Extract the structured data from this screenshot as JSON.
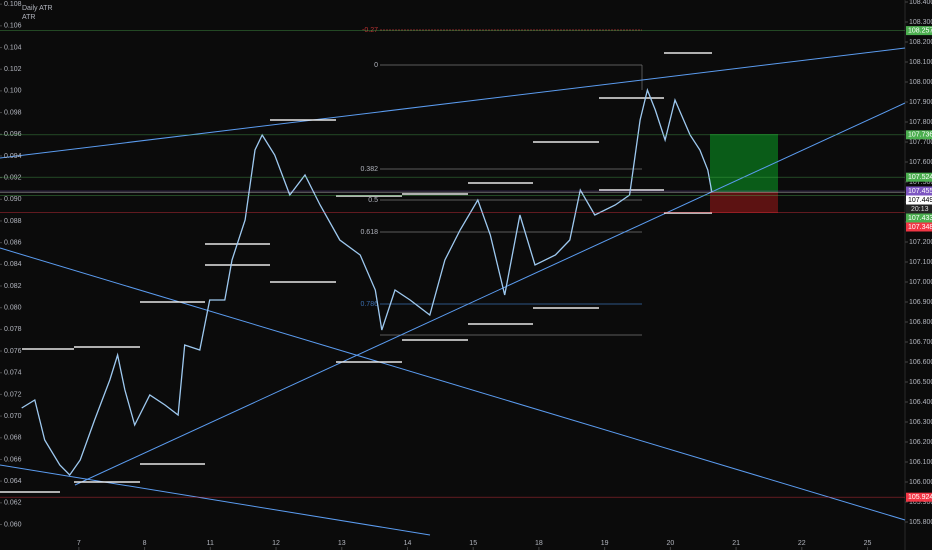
{
  "header": {
    "title": "Daily ATR",
    "indicator": "ATR"
  },
  "chart_data": {
    "type": "line",
    "color": "#9ec9f0",
    "axis": "y2",
    "x": [
      -0.87,
      -0.67,
      -0.52,
      -0.29,
      -0.14,
      0.02,
      0.24,
      0.47,
      0.59,
      0.7,
      0.85,
      1.08,
      1.31,
      1.51,
      1.61,
      1.84,
      1.99,
      2.22,
      2.33,
      2.53,
      2.68,
      2.79,
      2.98,
      3.21,
      3.44,
      3.67,
      3.97,
      4.28,
      4.51,
      4.61,
      4.81,
      5.04,
      5.34,
      5.57,
      5.8,
      6.07,
      6.26,
      6.48,
      6.71,
      6.94,
      7.25,
      7.47,
      7.63,
      7.85,
      8.16,
      8.38,
      8.54,
      8.65,
      8.77,
      8.92,
      9.07,
      9.3,
      9.45,
      9.57,
      9.63
    ],
    "values": [
      106.37,
      106.41,
      106.21,
      106.085,
      106.035,
      106.11,
      106.31,
      106.51,
      106.635,
      106.46,
      106.285,
      106.435,
      106.385,
      106.335,
      106.685,
      106.66,
      106.91,
      106.91,
      107.11,
      107.31,
      107.66,
      107.735,
      107.635,
      107.435,
      107.535,
      107.385,
      107.21,
      107.135,
      106.96,
      106.76,
      106.96,
      106.91,
      106.835,
      107.11,
      107.26,
      107.41,
      107.235,
      106.935,
      107.335,
      107.085,
      107.135,
      107.21,
      107.46,
      107.335,
      107.385,
      107.435,
      107.81,
      107.96,
      107.86,
      107.71,
      107.91,
      107.735,
      107.66,
      107.56,
      107.45
    ],
    "xlim": [
      -1.2,
      12.57
    ],
    "xticks": [
      {
        "value": 0,
        "label": "7"
      },
      {
        "value": 1,
        "label": "8"
      },
      {
        "value": 2,
        "label": "11"
      },
      {
        "value": 3,
        "label": "12"
      },
      {
        "value": 4,
        "label": "13"
      },
      {
        "value": 5,
        "label": "14"
      },
      {
        "value": 6,
        "label": "15"
      },
      {
        "value": 7,
        "label": "18"
      },
      {
        "value": 8,
        "label": "19"
      },
      {
        "value": 9,
        "label": "20"
      },
      {
        "value": 10,
        "label": "21"
      },
      {
        "value": 11,
        "label": "22"
      },
      {
        "value": 12,
        "label": "25"
      }
    ],
    "ylim": [
      0.0582,
      0.1082
    ],
    "yticks": [
      {
        "value": 0.06,
        "label": "0.060"
      },
      {
        "value": 0.062,
        "label": "0.062"
      },
      {
        "value": 0.064,
        "label": "0.064"
      },
      {
        "value": 0.066,
        "label": "0.066"
      },
      {
        "value": 0.068,
        "label": "0.068"
      },
      {
        "value": 0.07,
        "label": "0.070"
      },
      {
        "value": 0.072,
        "label": "0.072"
      },
      {
        "value": 0.074,
        "label": "0.074"
      },
      {
        "value": 0.076,
        "label": "0.076"
      },
      {
        "value": 0.078,
        "label": "0.078"
      },
      {
        "value": 0.08,
        "label": "0.080"
      },
      {
        "value": 0.082,
        "label": "0.082"
      },
      {
        "value": 0.084,
        "label": "0.084"
      },
      {
        "value": 0.086,
        "label": "0.086"
      },
      {
        "value": 0.088,
        "label": "0.088"
      },
      {
        "value": 0.09,
        "label": "0.090"
      },
      {
        "value": 0.092,
        "label": "0.092"
      },
      {
        "value": 0.094,
        "label": "0.094"
      },
      {
        "value": 0.096,
        "label": "0.096"
      },
      {
        "value": 0.098,
        "label": "0.098"
      },
      {
        "value": 0.1,
        "label": "0.100"
      },
      {
        "value": 0.102,
        "label": "0.102"
      },
      {
        "value": 0.104,
        "label": "0.104"
      },
      {
        "value": 0.106,
        "label": "0.106"
      },
      {
        "value": 0.108,
        "label": "0.108"
      }
    ],
    "y2lim": [
      105.69,
      108.4
    ],
    "y2ticks": [
      {
        "value": 105.8,
        "label": "105.800"
      },
      {
        "value": 105.9,
        "label": "105.900"
      },
      {
        "value": 106.0,
        "label": "106.000"
      },
      {
        "value": 106.1,
        "label": "106.100"
      },
      {
        "value": 106.2,
        "label": "106.200"
      },
      {
        "value": 106.3,
        "label": "106.300"
      },
      {
        "value": 106.4,
        "label": "106.400"
      },
      {
        "value": 106.5,
        "label": "106.500"
      },
      {
        "value": 106.6,
        "label": "106.600"
      },
      {
        "value": 106.7,
        "label": "106.700"
      },
      {
        "value": 106.8,
        "label": "106.800"
      },
      {
        "value": 106.9,
        "label": "106.900"
      },
      {
        "value": 107.0,
        "label": "107.000"
      },
      {
        "value": 107.1,
        "label": "107.100"
      },
      {
        "value": 107.2,
        "label": "107.200"
      },
      {
        "value": 107.3,
        "label": "107.300"
      },
      {
        "value": 107.4,
        "label": "107.400"
      },
      {
        "value": 107.5,
        "label": "107.500"
      },
      {
        "value": 107.6,
        "label": "107.600"
      },
      {
        "value": 107.7,
        "label": "107.700"
      },
      {
        "value": 107.8,
        "label": "107.800"
      },
      {
        "value": 107.9,
        "label": "107.900"
      },
      {
        "value": 108.0,
        "label": "108.000"
      },
      {
        "value": 108.1,
        "label": "108.100"
      },
      {
        "value": 108.2,
        "label": "108.200"
      },
      {
        "value": 108.3,
        "label": "108.300"
      },
      {
        "value": 108.4,
        "label": "108.400"
      }
    ],
    "price_tags": [
      {
        "value": 108.257,
        "label": "108.257",
        "color": "#4caf50"
      },
      {
        "value": 107.736,
        "label": "107.736",
        "color": "#4caf50"
      },
      {
        "value": 107.524,
        "label": "107.524",
        "color": "#4caf50"
      },
      {
        "value": 107.455,
        "label": "107.455",
        "color": "#7e57c2"
      },
      {
        "value": 107.449,
        "label": "107.449",
        "color": "#ffffff"
      },
      {
        "value": 107.433,
        "label": "107.433",
        "color": "#4caf50"
      },
      {
        "value": 107.348,
        "label": "107.348",
        "color": "#f23645"
      },
      {
        "value": 105.924,
        "label": "105.924",
        "color": "#f23645"
      }
    ],
    "current_time": "20:13",
    "fib_labels": [
      "-0.27",
      "0",
      "0.382",
      "0.5",
      "0.618",
      "0.786"
    ]
  }
}
